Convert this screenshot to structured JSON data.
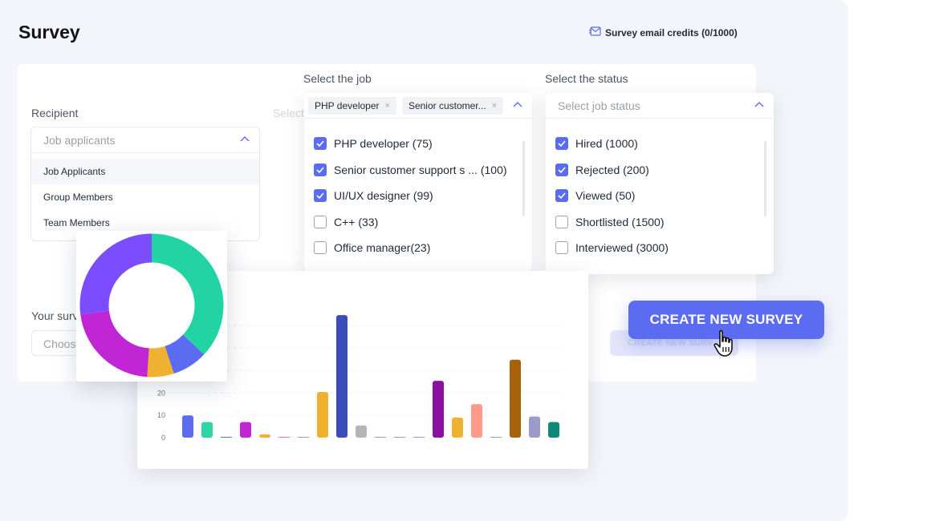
{
  "page": {
    "title": "Survey",
    "credits_label": "Survey email credits (0/1000)"
  },
  "recipient": {
    "label": "Recipient",
    "placeholder": "Job applicants",
    "options": [
      "Job Applicants",
      "Group Members",
      "Team Members"
    ]
  },
  "job": {
    "label": "Select the job",
    "ghost_label": "Select",
    "selected_tags": [
      "PHP developer",
      "Senior customer..."
    ],
    "options": [
      {
        "label": "PHP developer (75)",
        "checked": true
      },
      {
        "label": "Senior customer support s ... (100)",
        "checked": true
      },
      {
        "label": "UI/UX designer (99)",
        "checked": true
      },
      {
        "label": "C++ (33)",
        "checked": false
      },
      {
        "label": "Office manager(23)",
        "checked": false
      }
    ]
  },
  "status": {
    "label": "Select the status",
    "placeholder": "Select job status",
    "options": [
      {
        "label": "Hired (1000)",
        "checked": true
      },
      {
        "label": "Rejected (200)",
        "checked": true
      },
      {
        "label": "Viewed (50)",
        "checked": true
      },
      {
        "label": "Shortlisted (1500)",
        "checked": false
      },
      {
        "label": "Interviewed (3000)",
        "checked": false
      }
    ]
  },
  "survey": {
    "label": "Your surv",
    "placeholder": "Choos"
  },
  "actions": {
    "create_label": "CREATE NEW SURVEY",
    "ghost_label": "CREATE NEW SURV"
  },
  "colors": {
    "accent": "#5b6cf2"
  },
  "chart_data": [
    {
      "type": "pie",
      "donut": true,
      "slices": [
        {
          "value": 37,
          "color": "#22d3a4"
        },
        {
          "value": 8,
          "color": "#5b6cf2"
        },
        {
          "value": 6,
          "color": "#f0b030"
        },
        {
          "value": 22,
          "color": "#c026d3"
        },
        {
          "value": 27,
          "color": "#7c4dff"
        }
      ]
    },
    {
      "type": "bar",
      "ylim": [
        0,
        60
      ],
      "yticks": [
        "0",
        "10",
        "20"
      ],
      "values": [
        10,
        7,
        0.3,
        7,
        1.5,
        0.3,
        0.3,
        20.5,
        55,
        5.5,
        0.3,
        0.3,
        0.3,
        25.5,
        9,
        15,
        0.3,
        35,
        9.5,
        7
      ],
      "colors": [
        "#5b6cf2",
        "#2dd4a4",
        "#5b6cf2",
        "#c026d3",
        "#f0b030",
        "#fb7185",
        "#9ca3af",
        "#f0b030",
        "#3b4db8",
        "#b5b5b5",
        "#9ca3af",
        "#9ca3af",
        "#9ca3af",
        "#8b0fa0",
        "#f0b030",
        "#ff9a8b",
        "#9ca3af",
        "#a8620a",
        "#9c9ac8",
        "#0f8a78"
      ]
    }
  ]
}
